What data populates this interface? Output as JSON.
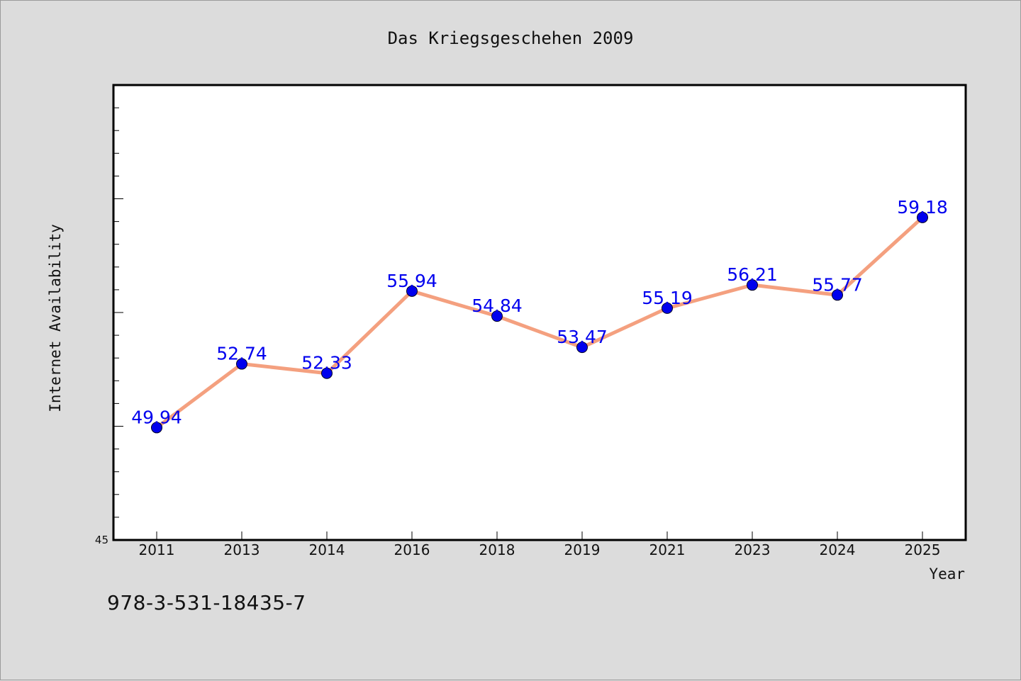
{
  "chart_data": {
    "type": "line",
    "title": "Das Kriegsgeschehen 2009",
    "xlabel": "Year",
    "ylabel": "Internet Availability",
    "categories": [
      "2011",
      "2013",
      "2014",
      "2016",
      "2018",
      "2019",
      "2021",
      "2023",
      "2024",
      "2025"
    ],
    "series": [
      {
        "values": [
          49.94,
          52.74,
          52.33,
          55.94,
          54.84,
          53.47,
          55.19,
          56.21,
          55.77,
          59.18
        ],
        "labels": [
          "49.94",
          "52.74",
          "52.33",
          "55.94",
          "54.84",
          "53.47",
          "55.19",
          "56.21",
          "55.77",
          "59.18"
        ]
      }
    ],
    "ylim": [
      45,
      65
    ],
    "y_tick_labels": [
      "45"
    ],
    "line_color": "#f4a07f",
    "marker_color": "#0000ee",
    "label_color": "#0000ee",
    "grid": false
  },
  "footer": {
    "isbn": "978-3-531-18435-7"
  }
}
